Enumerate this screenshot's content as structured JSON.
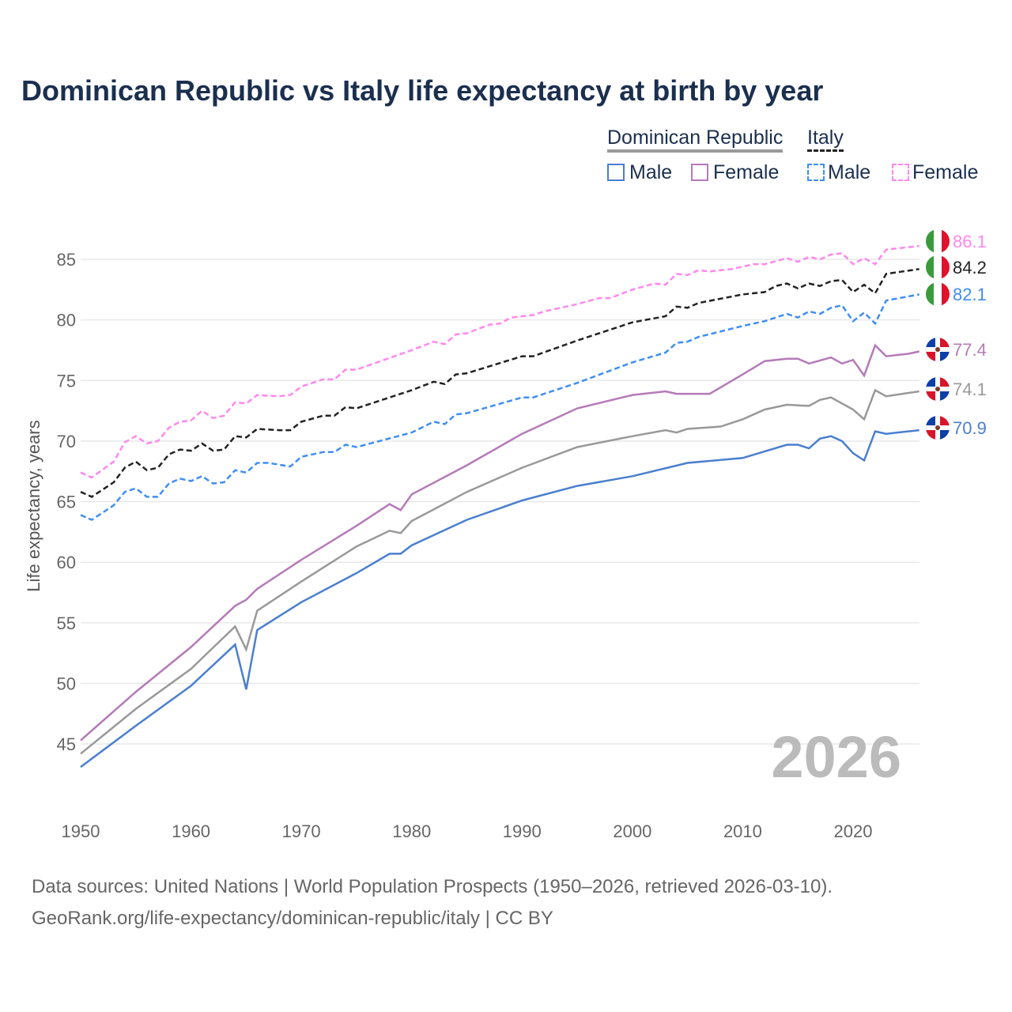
{
  "chart_data": {
    "type": "line",
    "title": "Dominican Republic vs Italy life expectancy at birth by year",
    "xlabel": "",
    "ylabel": "Life expectancy, years",
    "xlim": [
      1950,
      2026
    ],
    "ylim": [
      41,
      88
    ],
    "x_ticks": [
      "1950",
      "1960",
      "1970",
      "1980",
      "1990",
      "2000",
      "2010",
      "2020"
    ],
    "y_ticks": [
      "45",
      "50",
      "55",
      "60",
      "65",
      "70",
      "75",
      "80",
      "85"
    ],
    "grid": true,
    "year_label": "2026",
    "legend": {
      "group1": "Dominican Republic",
      "group2": "Italy",
      "male": "Male",
      "female": "Female"
    },
    "series": [
      {
        "name": "Italy Female",
        "country": "Italy",
        "color": "#ff88ee",
        "dashed": true,
        "end_label": "86.1",
        "points": [
          [
            1950,
            67.4
          ],
          [
            1951,
            67.0
          ],
          [
            1953,
            68.3
          ],
          [
            1954,
            69.9
          ],
          [
            1955,
            70.4
          ],
          [
            1956,
            69.8
          ],
          [
            1957,
            70.0
          ],
          [
            1958,
            71.1
          ],
          [
            1959,
            71.6
          ],
          [
            1960,
            71.7
          ],
          [
            1961,
            72.5
          ],
          [
            1962,
            71.9
          ],
          [
            1963,
            72.1
          ],
          [
            1964,
            73.2
          ],
          [
            1965,
            73.1
          ],
          [
            1966,
            73.8
          ],
          [
            1968,
            73.7
          ],
          [
            1969,
            73.8
          ],
          [
            1970,
            74.5
          ],
          [
            1972,
            75.1
          ],
          [
            1973,
            75.1
          ],
          [
            1974,
            75.9
          ],
          [
            1975,
            75.9
          ],
          [
            1980,
            77.5
          ],
          [
            1982,
            78.2
          ],
          [
            1983,
            78.0
          ],
          [
            1984,
            78.8
          ],
          [
            1985,
            78.9
          ],
          [
            1987,
            79.6
          ],
          [
            1988,
            79.7
          ],
          [
            1989,
            80.2
          ],
          [
            1991,
            80.4
          ],
          [
            1992,
            80.7
          ],
          [
            1995,
            81.3
          ],
          [
            1997,
            81.8
          ],
          [
            1998,
            81.8
          ],
          [
            2000,
            82.5
          ],
          [
            2002,
            83.0
          ],
          [
            2003,
            82.9
          ],
          [
            2004,
            83.8
          ],
          [
            2005,
            83.7
          ],
          [
            2006,
            84.1
          ],
          [
            2007,
            84.0
          ],
          [
            2009,
            84.2
          ],
          [
            2011,
            84.6
          ],
          [
            2012,
            84.6
          ],
          [
            2014,
            85.1
          ],
          [
            2015,
            84.8
          ],
          [
            2016,
            85.2
          ],
          [
            2017,
            85.0
          ],
          [
            2018,
            85.4
          ],
          [
            2019,
            85.5
          ],
          [
            2020,
            84.6
          ],
          [
            2021,
            85.1
          ],
          [
            2022,
            84.6
          ],
          [
            2023,
            85.8
          ],
          [
            2026,
            86.1
          ]
        ]
      },
      {
        "name": "Italy",
        "country": "Italy",
        "color": "#222222",
        "dashed": true,
        "end_label": "84.2",
        "points": [
          [
            1950,
            65.8
          ],
          [
            1951,
            65.4
          ],
          [
            1953,
            66.6
          ],
          [
            1954,
            67.8
          ],
          [
            1955,
            68.3
          ],
          [
            1956,
            67.6
          ],
          [
            1957,
            67.8
          ],
          [
            1958,
            68.9
          ],
          [
            1959,
            69.3
          ],
          [
            1960,
            69.2
          ],
          [
            1961,
            69.8
          ],
          [
            1962,
            69.2
          ],
          [
            1963,
            69.3
          ],
          [
            1964,
            70.4
          ],
          [
            1965,
            70.3
          ],
          [
            1966,
            71.0
          ],
          [
            1968,
            70.9
          ],
          [
            1969,
            70.9
          ],
          [
            1970,
            71.6
          ],
          [
            1972,
            72.1
          ],
          [
            1973,
            72.1
          ],
          [
            1974,
            72.8
          ],
          [
            1975,
            72.7
          ],
          [
            1980,
            74.2
          ],
          [
            1982,
            74.9
          ],
          [
            1983,
            74.7
          ],
          [
            1984,
            75.5
          ],
          [
            1985,
            75.6
          ],
          [
            1990,
            77.0
          ],
          [
            1991,
            77.0
          ],
          [
            1995,
            78.3
          ],
          [
            2000,
            79.8
          ],
          [
            2003,
            80.3
          ],
          [
            2004,
            81.1
          ],
          [
            2005,
            81.0
          ],
          [
            2006,
            81.4
          ],
          [
            2010,
            82.1
          ],
          [
            2012,
            82.3
          ],
          [
            2013,
            82.8
          ],
          [
            2014,
            83.0
          ],
          [
            2015,
            82.6
          ],
          [
            2016,
            83.0
          ],
          [
            2017,
            82.8
          ],
          [
            2018,
            83.2
          ],
          [
            2019,
            83.3
          ],
          [
            2020,
            82.3
          ],
          [
            2021,
            82.9
          ],
          [
            2022,
            82.2
          ],
          [
            2023,
            83.8
          ],
          [
            2026,
            84.2
          ]
        ]
      },
      {
        "name": "Italy Male",
        "country": "Italy",
        "color": "#3f8ef5",
        "dashed": true,
        "end_label": "82.1",
        "points": [
          [
            1950,
            63.9
          ],
          [
            1951,
            63.5
          ],
          [
            1953,
            64.7
          ],
          [
            1954,
            65.8
          ],
          [
            1955,
            66.1
          ],
          [
            1956,
            65.4
          ],
          [
            1957,
            65.4
          ],
          [
            1958,
            66.5
          ],
          [
            1959,
            66.9
          ],
          [
            1960,
            66.7
          ],
          [
            1961,
            67.1
          ],
          [
            1962,
            66.5
          ],
          [
            1963,
            66.6
          ],
          [
            1964,
            67.6
          ],
          [
            1965,
            67.4
          ],
          [
            1966,
            68.2
          ],
          [
            1967,
            68.2
          ],
          [
            1969,
            67.9
          ],
          [
            1970,
            68.7
          ],
          [
            1972,
            69.1
          ],
          [
            1973,
            69.1
          ],
          [
            1974,
            69.7
          ],
          [
            1975,
            69.5
          ],
          [
            1980,
            70.7
          ],
          [
            1982,
            71.6
          ],
          [
            1983,
            71.4
          ],
          [
            1984,
            72.2
          ],
          [
            1985,
            72.3
          ],
          [
            1990,
            73.6
          ],
          [
            1991,
            73.6
          ],
          [
            1995,
            74.8
          ],
          [
            2000,
            76.5
          ],
          [
            2003,
            77.3
          ],
          [
            2004,
            78.1
          ],
          [
            2005,
            78.2
          ],
          [
            2006,
            78.6
          ],
          [
            2010,
            79.5
          ],
          [
            2012,
            79.9
          ],
          [
            2014,
            80.5
          ],
          [
            2015,
            80.2
          ],
          [
            2016,
            80.7
          ],
          [
            2017,
            80.5
          ],
          [
            2018,
            81.0
          ],
          [
            2019,
            81.2
          ],
          [
            2020,
            79.9
          ],
          [
            2021,
            80.6
          ],
          [
            2022,
            79.7
          ],
          [
            2023,
            81.6
          ],
          [
            2026,
            82.1
          ]
        ]
      },
      {
        "name": "Dominican Republic Female",
        "country": "Dominican Republic",
        "color": "#b57ab8",
        "dashed": false,
        "end_label": "77.4",
        "points": [
          [
            1950,
            45.3
          ],
          [
            1955,
            49.3
          ],
          [
            1960,
            53.0
          ],
          [
            1964,
            56.4
          ],
          [
            1965,
            56.9
          ],
          [
            1966,
            57.8
          ],
          [
            1970,
            60.2
          ],
          [
            1975,
            63.0
          ],
          [
            1978,
            64.8
          ],
          [
            1979,
            64.3
          ],
          [
            1980,
            65.6
          ],
          [
            1985,
            68.0
          ],
          [
            1990,
            70.6
          ],
          [
            1995,
            72.7
          ],
          [
            2000,
            73.8
          ],
          [
            2003,
            74.1
          ],
          [
            2004,
            73.9
          ],
          [
            2007,
            73.9
          ],
          [
            2010,
            75.5
          ],
          [
            2012,
            76.6
          ],
          [
            2014,
            76.8
          ],
          [
            2015,
            76.8
          ],
          [
            2016,
            76.4
          ],
          [
            2018,
            76.9
          ],
          [
            2019,
            76.4
          ],
          [
            2020,
            76.7
          ],
          [
            2021,
            75.4
          ],
          [
            2022,
            77.9
          ],
          [
            2023,
            77.0
          ],
          [
            2025,
            77.2
          ],
          [
            2026,
            77.4
          ]
        ]
      },
      {
        "name": "Dominican Republic",
        "country": "Dominican Republic",
        "color": "#999999",
        "dashed": false,
        "end_label": "74.1",
        "points": [
          [
            1950,
            44.2
          ],
          [
            1955,
            47.9
          ],
          [
            1960,
            51.2
          ],
          [
            1964,
            54.7
          ],
          [
            1965,
            52.8
          ],
          [
            1966,
            56.0
          ],
          [
            1970,
            58.4
          ],
          [
            1975,
            61.3
          ],
          [
            1978,
            62.6
          ],
          [
            1979,
            62.4
          ],
          [
            1980,
            63.4
          ],
          [
            1985,
            65.8
          ],
          [
            1990,
            67.8
          ],
          [
            1995,
            69.5
          ],
          [
            2000,
            70.4
          ],
          [
            2003,
            70.9
          ],
          [
            2004,
            70.7
          ],
          [
            2005,
            71.0
          ],
          [
            2008,
            71.2
          ],
          [
            2010,
            71.8
          ],
          [
            2012,
            72.6
          ],
          [
            2014,
            73.0
          ],
          [
            2016,
            72.9
          ],
          [
            2017,
            73.4
          ],
          [
            2018,
            73.6
          ],
          [
            2020,
            72.6
          ],
          [
            2021,
            71.8
          ],
          [
            2022,
            74.2
          ],
          [
            2023,
            73.7
          ],
          [
            2026,
            74.1
          ]
        ]
      },
      {
        "name": "Dominican Republic Male",
        "country": "Dominican Republic",
        "color": "#4a7fcf",
        "dashed": false,
        "end_label": "70.9",
        "points": [
          [
            1950,
            43.1
          ],
          [
            1955,
            46.5
          ],
          [
            1960,
            49.8
          ],
          [
            1964,
            53.2
          ],
          [
            1965,
            49.5
          ],
          [
            1966,
            54.4
          ],
          [
            1970,
            56.7
          ],
          [
            1975,
            59.1
          ],
          [
            1978,
            60.7
          ],
          [
            1979,
            60.7
          ],
          [
            1980,
            61.4
          ],
          [
            1985,
            63.5
          ],
          [
            1990,
            65.1
          ],
          [
            1995,
            66.3
          ],
          [
            2000,
            67.1
          ],
          [
            2005,
            68.2
          ],
          [
            2010,
            68.6
          ],
          [
            2014,
            69.7
          ],
          [
            2015,
            69.7
          ],
          [
            2016,
            69.4
          ],
          [
            2017,
            70.2
          ],
          [
            2018,
            70.4
          ],
          [
            2019,
            70.0
          ],
          [
            2020,
            69.0
          ],
          [
            2021,
            68.4
          ],
          [
            2022,
            70.8
          ],
          [
            2023,
            70.6
          ],
          [
            2024,
            70.7
          ],
          [
            2026,
            70.9
          ]
        ]
      }
    ]
  },
  "footer": {
    "line1": "Data sources: United Nations | World Population Prospects (1950–2026, retrieved 2026-03-10).",
    "line2": "GeoRank.org/life-expectancy/dominican-republic/italy | CC BY"
  }
}
